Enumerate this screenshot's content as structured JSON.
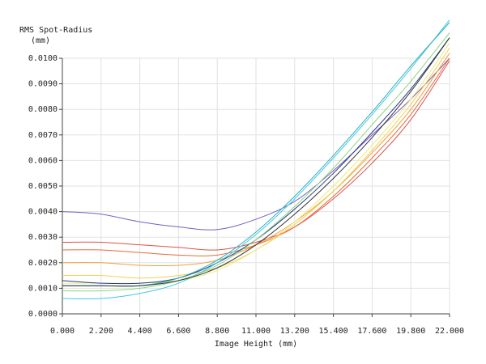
{
  "chart_data": {
    "type": "line",
    "ylabel": [
      "RMS Spot-Radius",
      "(mm)"
    ],
    "xlabel": "Image Height (mm)",
    "x": [
      0,
      2.2,
      4.4,
      6.6,
      8.8,
      11,
      13.2,
      15.4,
      17.6,
      19.8,
      22
    ],
    "xlim": [
      0,
      22
    ],
    "xticks": [
      {
        "value": 0,
        "label": "0.000"
      },
      {
        "value": 2.2,
        "label": "2.200"
      },
      {
        "value": 4.4,
        "label": "4.400"
      },
      {
        "value": 6.6,
        "label": "6.600"
      },
      {
        "value": 8.8,
        "label": "8.800"
      },
      {
        "value": 11,
        "label": "11.000"
      },
      {
        "value": 13.2,
        "label": "13.200"
      },
      {
        "value": 15.4,
        "label": "15.400"
      },
      {
        "value": 17.6,
        "label": "17.600"
      },
      {
        "value": 19.8,
        "label": "19.800"
      },
      {
        "value": 22,
        "label": "22.000"
      }
    ],
    "ylim": [
      0,
      0.01
    ],
    "yticks": [
      {
        "value": 0,
        "label": "0.0000"
      },
      {
        "value": 0.001,
        "label": "0.0010"
      },
      {
        "value": 0.002,
        "label": "0.0020"
      },
      {
        "value": 0.003,
        "label": "0.0030"
      },
      {
        "value": 0.004,
        "label": "0.0040"
      },
      {
        "value": 0.005,
        "label": "0.0050"
      },
      {
        "value": 0.006,
        "label": "0.0060"
      },
      {
        "value": 0.007,
        "label": "0.0070"
      },
      {
        "value": 0.008,
        "label": "0.0080"
      },
      {
        "value": 0.009,
        "label": "0.0090"
      },
      {
        "value": 0.01,
        "label": "0.0100"
      }
    ],
    "grid": true,
    "series": [
      {
        "color": "#7a5cc8",
        "values": [
          0.004,
          0.0039,
          0.0036,
          0.0034,
          0.0033,
          0.0037,
          0.0044,
          0.0056,
          0.007,
          0.0084,
          0.01
        ]
      },
      {
        "color": "#e0504a",
        "values": [
          0.0028,
          0.0028,
          0.0027,
          0.0026,
          0.0025,
          0.0028,
          0.0034,
          0.0045,
          0.0059,
          0.0076,
          0.0099
        ]
      },
      {
        "color": "#e86a3c",
        "values": [
          0.0025,
          0.0025,
          0.0024,
          0.0023,
          0.0023,
          0.0027,
          0.0034,
          0.0046,
          0.0061,
          0.0078,
          0.01
        ]
      },
      {
        "color": "#f0a040",
        "values": [
          0.002,
          0.002,
          0.0019,
          0.0019,
          0.0021,
          0.0027,
          0.0036,
          0.0048,
          0.0063,
          0.008,
          0.0102
        ]
      },
      {
        "color": "#f2d050",
        "values": [
          0.0015,
          0.0015,
          0.0014,
          0.0015,
          0.0018,
          0.0025,
          0.0035,
          0.0048,
          0.0064,
          0.0082,
          0.0104
        ]
      },
      {
        "color": "#e8ec80",
        "values": [
          0.0012,
          0.0012,
          0.0012,
          0.0013,
          0.0017,
          0.0025,
          0.0036,
          0.005,
          0.0066,
          0.0084,
          0.0106
        ]
      },
      {
        "color": "#2a3a8c",
        "values": [
          0.0013,
          0.0012,
          0.0012,
          0.0014,
          0.002,
          0.0029,
          0.0041,
          0.0055,
          0.0071,
          0.0088,
          0.0108
        ]
      },
      {
        "color": "#8ad87a",
        "values": [
          0.0009,
          0.0009,
          0.001,
          0.0013,
          0.0019,
          0.0029,
          0.0042,
          0.0057,
          0.0074,
          0.0091,
          0.011
        ]
      },
      {
        "color": "#40c8e8",
        "values": [
          0.0006,
          0.0006,
          0.0008,
          0.0012,
          0.002,
          0.0031,
          0.0045,
          0.0061,
          0.0078,
          0.0096,
          0.0115
        ]
      },
      {
        "color": "#30b0b8",
        "values": [
          0.0011,
          0.0011,
          0.0011,
          0.0014,
          0.0021,
          0.0032,
          0.0046,
          0.0062,
          0.0079,
          0.0097,
          0.0114
        ]
      },
      {
        "color": "#333333",
        "values": [
          0.0011,
          0.0011,
          0.0011,
          0.0013,
          0.0018,
          0.0027,
          0.0039,
          0.0053,
          0.0069,
          0.0087,
          0.0108
        ]
      }
    ]
  }
}
